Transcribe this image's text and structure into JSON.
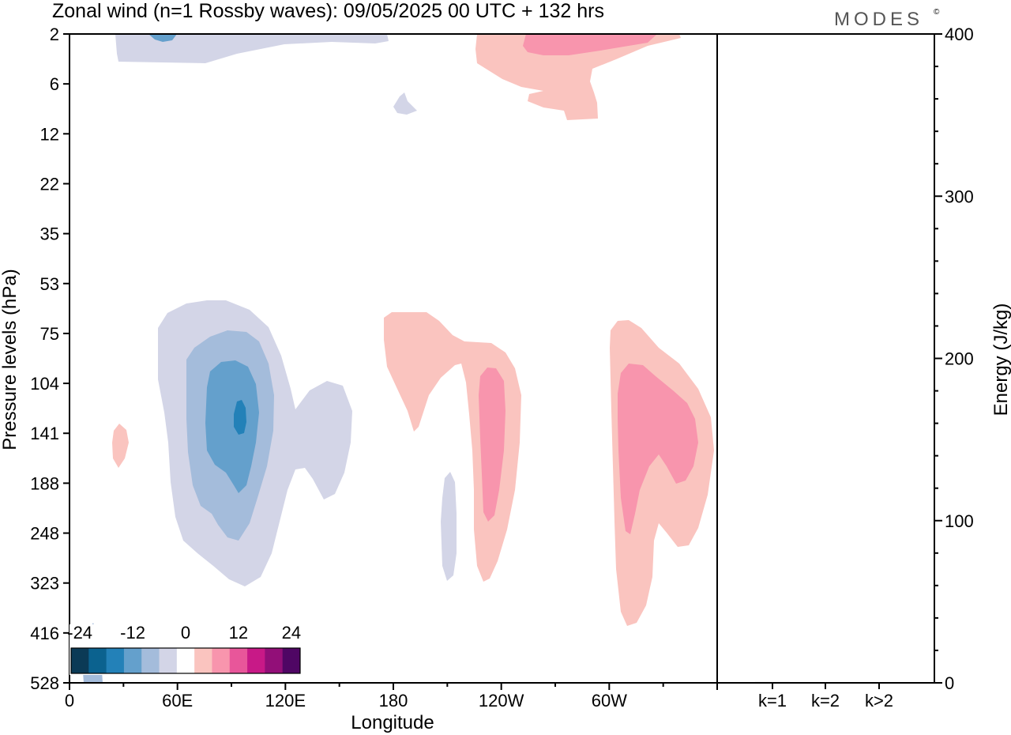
{
  "header": {
    "title": "Zonal wind (n=1 Rossby waves):  09/05/2025  00 UTC  + 132 hrs",
    "brand": "MODES",
    "brand_mark": "©"
  },
  "chart_data": [
    {
      "type": "heatmap",
      "title": "Zonal wind (n=1 Rossby waves):  09/05/2025  00 UTC  + 132 hrs",
      "xlabel": "Longitude",
      "ylabel": "Pressure levels (hPa)",
      "x_ticks": [
        "0",
        "60E",
        "120E",
        "180",
        "120W",
        "60W"
      ],
      "x_tick_values": [
        0,
        60,
        120,
        180,
        240,
        300
      ],
      "xlim": [
        0,
        360
      ],
      "y_ticks": [
        "2",
        "6",
        "12",
        "22",
        "35",
        "53",
        "75",
        "104",
        "141",
        "188",
        "248",
        "323",
        "416",
        "528"
      ],
      "y_scale": "pressure levels (inverted)",
      "colorbar": {
        "tick_labels": [
          "-24",
          "-12",
          "0",
          "12",
          "24"
        ],
        "tick_values": [
          -24,
          -12,
          0,
          12,
          24
        ],
        "colors": [
          "#0b3a56",
          "#0b628f",
          "#2381b8",
          "#64a0cc",
          "#a4bcdb",
          "#d3d5e7",
          "#ffffff",
          "#fac4bf",
          "#f895ad",
          "#e8569a",
          "#c81987",
          "#920f78",
          "#4f0664"
        ]
      },
      "regions": [
        {
          "sign": "negative",
          "longitude": [
            14,
            24
          ],
          "level_from": "2",
          "level_to": "2",
          "max_abs": 8
        },
        {
          "sign": "negative",
          "longitude": [
            5,
            120
          ],
          "level_from": "2",
          "level_to": "6",
          "max_abs": 4
        },
        {
          "sign": "positive",
          "longitude": [
            225,
            315
          ],
          "level_from": "2",
          "level_to": "12",
          "max_abs": 8
        },
        {
          "sign": "negative",
          "longitude": [
            40,
            143
          ],
          "level_from": "53",
          "level_to": "323",
          "max_abs": 15,
          "center_longitude": 87,
          "center_level": "141"
        },
        {
          "sign": "positive",
          "longitude": [
            25,
            30
          ],
          "level_from": "141",
          "level_to": "188",
          "max_abs": 4
        },
        {
          "sign": "positive",
          "longitude": [
            176,
            235
          ],
          "level_from": "75",
          "level_to": "323",
          "max_abs": 8
        },
        {
          "sign": "negative",
          "longitude": [
            193,
            199
          ],
          "level_from": "188",
          "level_to": "323",
          "max_abs": 4
        },
        {
          "sign": "positive",
          "longitude": [
            298,
            360
          ],
          "level_from": "75",
          "level_to": "416",
          "max_abs": 8
        }
      ]
    },
    {
      "type": "bar",
      "title": "",
      "xlabel": "",
      "ylabel": "Energy (J/kg)",
      "categories": [
        "k=1",
        "k=2",
        "k>2"
      ],
      "values": [
        0.5,
        0.4,
        0.3
      ],
      "ylim": [
        0,
        400
      ],
      "y_ticks": [
        "0",
        "100",
        "200",
        "300",
        "400"
      ],
      "y_tick_values": [
        0,
        100,
        200,
        300,
        400
      ]
    }
  ]
}
